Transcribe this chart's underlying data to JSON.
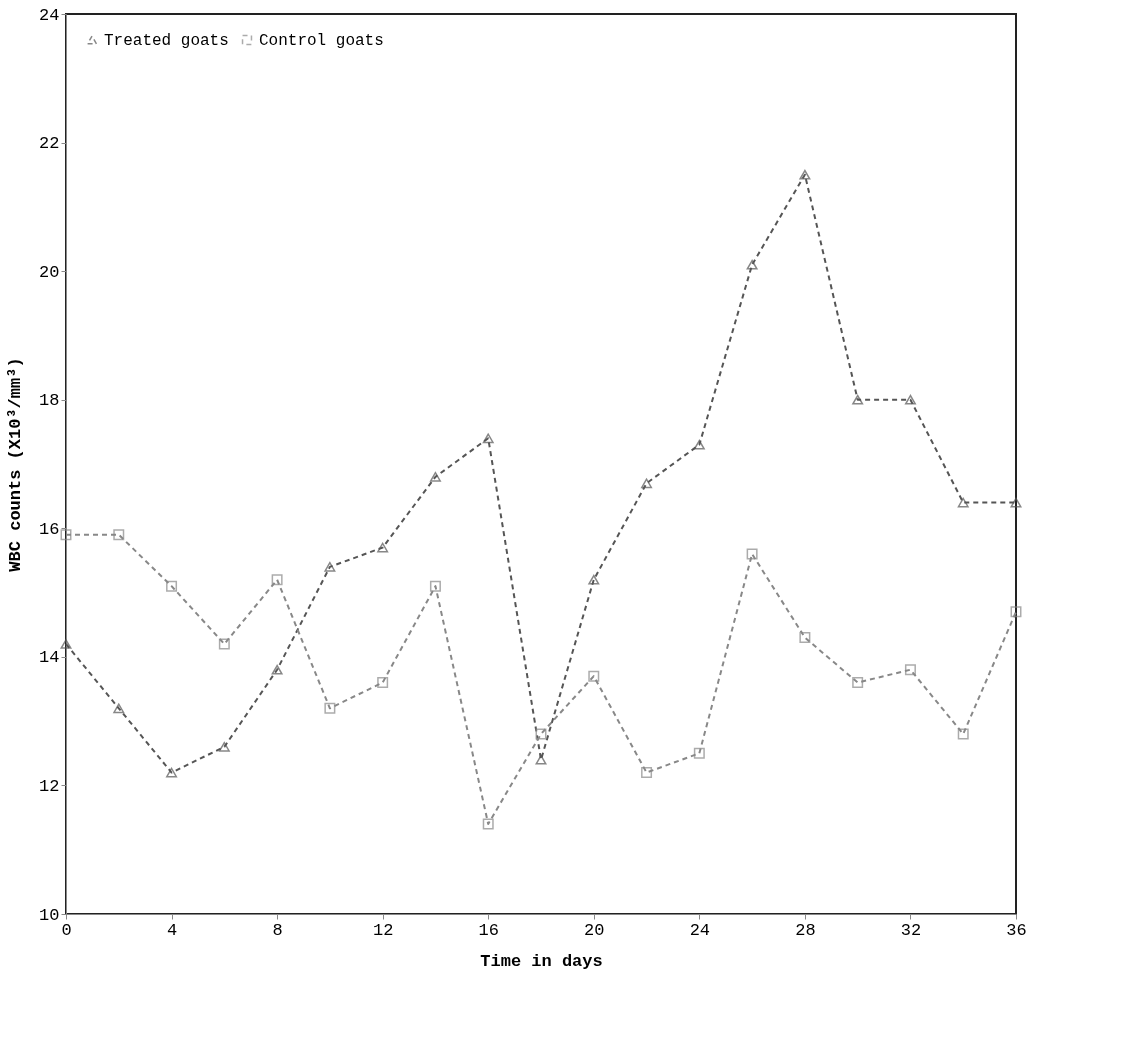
{
  "chart_data": {
    "type": "line",
    "xlabel": "Time  in days",
    "ylabel": "WBC counts (X10³/mm³)",
    "x": [
      0,
      2,
      4,
      6,
      8,
      10,
      12,
      14,
      16,
      18,
      20,
      22,
      24,
      26,
      28,
      30,
      32,
      34,
      36
    ],
    "series": [
      {
        "name": "Treated goats",
        "color": "#555555",
        "marker": "triangle",
        "line_style": "dashed",
        "values": [
          14.2,
          13.2,
          12.2,
          12.6,
          13.8,
          15.4,
          15.7,
          16.8,
          17.4,
          12.4,
          15.2,
          16.7,
          17.3,
          20.1,
          21.5,
          18.0,
          18.0,
          16.4,
          16.4
        ]
      },
      {
        "name": "Control goats",
        "color": "#888888",
        "marker": "square",
        "line_style": "dashed",
        "values": [
          15.9,
          15.9,
          15.1,
          14.2,
          15.2,
          13.2,
          13.6,
          15.1,
          11.4,
          12.8,
          13.7,
          12.2,
          12.5,
          15.6,
          14.3,
          13.6,
          13.8,
          12.8,
          14.7
        ]
      }
    ],
    "xlim": [
      0,
      36
    ],
    "ylim": [
      10,
      24
    ],
    "xticks": [
      0,
      4,
      8,
      12,
      16,
      20,
      24,
      28,
      32,
      36
    ],
    "yticks": [
      10,
      12,
      14,
      16,
      18,
      20,
      22,
      24
    ],
    "grid": false,
    "legend": "top left"
  }
}
